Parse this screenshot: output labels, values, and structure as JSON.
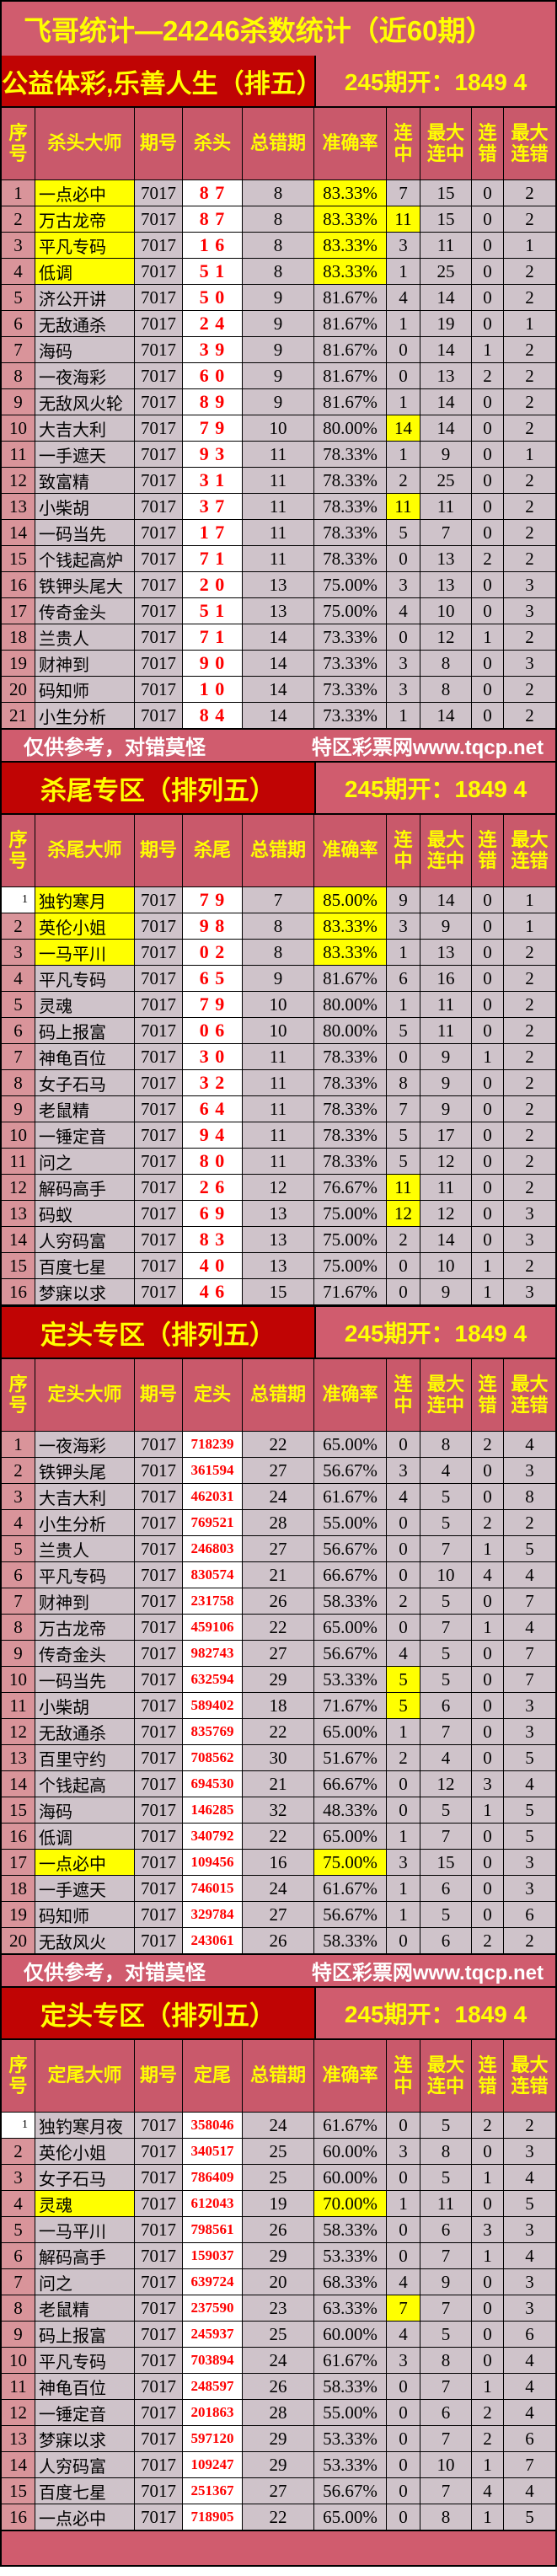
{
  "title": "飞哥统计—24246杀数统计（近60期）",
  "draw_text": "245期开：1849 4",
  "footer": {
    "left": "仅供参考，对错莫怪",
    "right": "特区彩票网www.tqcp.net"
  },
  "colors": {
    "pink": "#d05c6e",
    "dark_red": "#c00404",
    "header_rose": "#c9596b",
    "serial_salmon": "#d9949a",
    "cell_lavender": "#cfc3ca",
    "highlight_yellow": "#ffff00",
    "pick_red": "#fe0000",
    "title_yellow": "#ffff00"
  },
  "sections": [
    {
      "banner": "公益体彩,乐善人生（排五）",
      "pick_style": "pair",
      "footer_after": true,
      "columns": [
        "序号",
        "杀头大师",
        "期号",
        "杀头",
        "总错期",
        "准确率",
        "连中",
        "最大连中",
        "连错",
        "最大连错"
      ],
      "rows": [
        [
          "1",
          "一点必中",
          "7017",
          "8 7",
          "8",
          "83.33%",
          "7",
          "15",
          "0",
          "2",
          "nh ah"
        ],
        [
          "2",
          "万古龙帝",
          "7017",
          "8 7",
          "8",
          "83.33%",
          "11",
          "15",
          "0",
          "2",
          "nh ah sh"
        ],
        [
          "3",
          "平凡专码",
          "7017",
          "1 6",
          "8",
          "83.33%",
          "3",
          "11",
          "0",
          "1",
          "nh ah"
        ],
        [
          "4",
          "低调",
          "7017",
          "5 1",
          "8",
          "83.33%",
          "1",
          "25",
          "0",
          "2",
          "nh ah"
        ],
        [
          "5",
          "济公开讲",
          "7017",
          "5 0",
          "9",
          "81.67%",
          "4",
          "14",
          "0",
          "2",
          ""
        ],
        [
          "6",
          "无敌通杀",
          "7017",
          "2 4",
          "9",
          "81.67%",
          "1",
          "19",
          "0",
          "1",
          ""
        ],
        [
          "7",
          "海码",
          "7017",
          "3 9",
          "9",
          "81.67%",
          "0",
          "14",
          "1",
          "2",
          ""
        ],
        [
          "8",
          "一夜海彩",
          "7017",
          "6 0",
          "9",
          "81.67%",
          "0",
          "13",
          "2",
          "2",
          ""
        ],
        [
          "9",
          "无敌风火轮",
          "7017",
          "8 9",
          "9",
          "81.67%",
          "1",
          "14",
          "0",
          "2",
          ""
        ],
        [
          "10",
          "大吉大利",
          "7017",
          "7 9",
          "10",
          "80.00%",
          "14",
          "14",
          "0",
          "2",
          "sh"
        ],
        [
          "11",
          "一手遮天",
          "7017",
          "9 3",
          "11",
          "78.33%",
          "1",
          "9",
          "0",
          "1",
          ""
        ],
        [
          "12",
          "致富精",
          "7017",
          "3 1",
          "11",
          "78.33%",
          "2",
          "25",
          "0",
          "2",
          ""
        ],
        [
          "13",
          "小柴胡",
          "7017",
          "3 7",
          "11",
          "78.33%",
          "11",
          "11",
          "0",
          "2",
          "sh"
        ],
        [
          "14",
          "一码当先",
          "7017",
          "1 7",
          "11",
          "78.33%",
          "5",
          "7",
          "0",
          "2",
          ""
        ],
        [
          "15",
          "个钱起高炉",
          "7017",
          "7 1",
          "11",
          "78.33%",
          "0",
          "13",
          "2",
          "2",
          ""
        ],
        [
          "16",
          "铁钾头尾大",
          "7017",
          "2 0",
          "13",
          "75.00%",
          "3",
          "13",
          "0",
          "3",
          ""
        ],
        [
          "17",
          "传奇金头",
          "7017",
          "5 1",
          "13",
          "75.00%",
          "4",
          "10",
          "0",
          "3",
          ""
        ],
        [
          "18",
          "兰贵人",
          "7017",
          "7 1",
          "14",
          "73.33%",
          "0",
          "12",
          "1",
          "2",
          ""
        ],
        [
          "19",
          "财神到",
          "7017",
          "9 0",
          "14",
          "73.33%",
          "3",
          "8",
          "0",
          "3",
          ""
        ],
        [
          "20",
          "码知师",
          "7017",
          "1 0",
          "14",
          "73.33%",
          "3",
          "8",
          "0",
          "2",
          ""
        ],
        [
          "21",
          "小生分析",
          "7017",
          "8 4",
          "14",
          "73.33%",
          "1",
          "14",
          "0",
          "2",
          ""
        ]
      ]
    },
    {
      "banner": "杀尾专区（排列五）",
      "pick_style": "pair",
      "footer_after": false,
      "columns": [
        "序号",
        "杀尾大师",
        "期号",
        "杀尾",
        "总错期",
        "准确率",
        "连中",
        "最大连中",
        "连错",
        "最大连错"
      ],
      "rows": [
        [
          "1",
          "独钓寒月",
          "7017",
          "7 9",
          "7",
          "85.00%",
          "9",
          "14",
          "0",
          "1",
          "nh ah sw"
        ],
        [
          "2",
          "英伦小姐",
          "7017",
          "9 8",
          "8",
          "83.33%",
          "3",
          "9",
          "0",
          "1",
          "nh ah"
        ],
        [
          "3",
          "一马平川",
          "7017",
          "0 2",
          "8",
          "83.33%",
          "1",
          "13",
          "0",
          "2",
          "nh ah"
        ],
        [
          "4",
          "平凡专码",
          "7017",
          "6 5",
          "9",
          "81.67%",
          "6",
          "16",
          "0",
          "2",
          ""
        ],
        [
          "5",
          "灵魂",
          "7017",
          "7 9",
          "10",
          "80.00%",
          "1",
          "11",
          "0",
          "2",
          ""
        ],
        [
          "6",
          "码上报富",
          "7017",
          "0 6",
          "10",
          "80.00%",
          "5",
          "11",
          "0",
          "2",
          ""
        ],
        [
          "7",
          "神龟百位",
          "7017",
          "3 0",
          "11",
          "78.33%",
          "0",
          "9",
          "1",
          "2",
          ""
        ],
        [
          "8",
          "女子石马",
          "7017",
          "3 2",
          "11",
          "78.33%",
          "8",
          "9",
          "0",
          "2",
          ""
        ],
        [
          "9",
          "老鼠精",
          "7017",
          "6 4",
          "11",
          "78.33%",
          "7",
          "9",
          "0",
          "2",
          ""
        ],
        [
          "10",
          "一锤定音",
          "7017",
          "9 4",
          "11",
          "78.33%",
          "5",
          "17",
          "0",
          "2",
          ""
        ],
        [
          "11",
          "问之",
          "7017",
          "8 0",
          "11",
          "78.33%",
          "5",
          "12",
          "0",
          "2",
          ""
        ],
        [
          "12",
          "解码高手",
          "7017",
          "2 6",
          "12",
          "76.67%",
          "11",
          "11",
          "0",
          "2",
          "sh"
        ],
        [
          "13",
          "码蚁",
          "7017",
          "6 9",
          "13",
          "75.00%",
          "12",
          "12",
          "0",
          "3",
          "sh"
        ],
        [
          "14",
          "人穷码富",
          "7017",
          "8 3",
          "13",
          "75.00%",
          "2",
          "14",
          "0",
          "3",
          ""
        ],
        [
          "15",
          "百度七星",
          "7017",
          "4 0",
          "13",
          "75.00%",
          "0",
          "10",
          "1",
          "2",
          ""
        ],
        [
          "16",
          "梦寐以求",
          "7017",
          "4 6",
          "15",
          "71.67%",
          "0",
          "9",
          "1",
          "3",
          ""
        ]
      ]
    },
    {
      "banner": "定头专区（排列五）",
      "pick_style": "digits",
      "footer_after": true,
      "columns": [
        "序号",
        "定头大师",
        "期号",
        "定头",
        "总错期",
        "准确率",
        "连中",
        "最大连中",
        "连错",
        "最大连错"
      ],
      "rows": [
        [
          "1",
          "一夜海彩",
          "7017",
          "718239",
          "22",
          "65.00%",
          "0",
          "8",
          "2",
          "4",
          ""
        ],
        [
          "2",
          "铁钾头尾",
          "7017",
          "361594",
          "27",
          "56.67%",
          "3",
          "4",
          "0",
          "3",
          ""
        ],
        [
          "3",
          "大吉大利",
          "7017",
          "462031",
          "24",
          "61.67%",
          "4",
          "5",
          "0",
          "8",
          ""
        ],
        [
          "4",
          "小生分析",
          "7017",
          "769521",
          "28",
          "55.00%",
          "0",
          "5",
          "2",
          "2",
          ""
        ],
        [
          "5",
          "兰贵人",
          "7017",
          "246803",
          "27",
          "56.67%",
          "0",
          "7",
          "1",
          "5",
          ""
        ],
        [
          "6",
          "平凡专码",
          "7017",
          "830574",
          "21",
          "66.67%",
          "0",
          "10",
          "4",
          "4",
          ""
        ],
        [
          "7",
          "财神到",
          "7017",
          "231758",
          "26",
          "58.33%",
          "2",
          "5",
          "0",
          "7",
          ""
        ],
        [
          "8",
          "万古龙帝",
          "7017",
          "459106",
          "22",
          "65.00%",
          "0",
          "7",
          "1",
          "4",
          ""
        ],
        [
          "9",
          "传奇金头",
          "7017",
          "982743",
          "27",
          "56.67%",
          "4",
          "5",
          "0",
          "7",
          ""
        ],
        [
          "10",
          "一码当先",
          "7017",
          "632594",
          "29",
          "53.33%",
          "5",
          "5",
          "0",
          "7",
          "sh"
        ],
        [
          "11",
          "小柴胡",
          "7017",
          "589402",
          "18",
          "71.67%",
          "5",
          "6",
          "0",
          "3",
          "sh"
        ],
        [
          "12",
          "无敌通杀",
          "7017",
          "835769",
          "22",
          "65.00%",
          "1",
          "7",
          "0",
          "3",
          ""
        ],
        [
          "13",
          "百里守约",
          "7017",
          "708562",
          "30",
          "51.67%",
          "2",
          "4",
          "0",
          "5",
          ""
        ],
        [
          "14",
          "个钱起高",
          "7017",
          "694530",
          "21",
          "66.67%",
          "0",
          "12",
          "3",
          "4",
          ""
        ],
        [
          "15",
          "海码",
          "7017",
          "146285",
          "32",
          "48.33%",
          "0",
          "5",
          "1",
          "5",
          ""
        ],
        [
          "16",
          "低调",
          "7017",
          "340792",
          "22",
          "65.00%",
          "1",
          "7",
          "0",
          "5",
          ""
        ],
        [
          "17",
          "一点必中",
          "7017",
          "109456",
          "16",
          "75.00%",
          "3",
          "15",
          "0",
          "3",
          "nh ah"
        ],
        [
          "18",
          "一手遮天",
          "7017",
          "746015",
          "24",
          "61.67%",
          "1",
          "6",
          "0",
          "3",
          ""
        ],
        [
          "19",
          "码知师",
          "7017",
          "329784",
          "27",
          "56.67%",
          "1",
          "5",
          "0",
          "6",
          ""
        ],
        [
          "20",
          "无敌风火",
          "7017",
          "243061",
          "26",
          "58.33%",
          "0",
          "6",
          "2",
          "2",
          ""
        ]
      ]
    },
    {
      "banner": "定头专区（排列五）",
      "pick_style": "digits",
      "footer_after": false,
      "columns": [
        "序号",
        "定尾大师",
        "期号",
        "定尾",
        "总错期",
        "准确率",
        "连中",
        "最大连中",
        "连错",
        "最大连错"
      ],
      "rows": [
        [
          "1",
          "独钓寒月夜",
          "7017",
          "358046",
          "24",
          "61.67%",
          "0",
          "5",
          "2",
          "2",
          "sw"
        ],
        [
          "2",
          "英伦小姐",
          "7017",
          "340517",
          "25",
          "60.00%",
          "3",
          "8",
          "0",
          "3",
          ""
        ],
        [
          "3",
          "女子石马",
          "7017",
          "786409",
          "25",
          "60.00%",
          "0",
          "5",
          "1",
          "4",
          ""
        ],
        [
          "4",
          "灵魂",
          "7017",
          "612043",
          "19",
          "70.00%",
          "1",
          "11",
          "0",
          "5",
          "nh ah"
        ],
        [
          "5",
          "一马平川",
          "7017",
          "798561",
          "26",
          "58.33%",
          "0",
          "6",
          "3",
          "3",
          ""
        ],
        [
          "6",
          "解码高手",
          "7017",
          "159037",
          "29",
          "53.33%",
          "0",
          "7",
          "1",
          "4",
          ""
        ],
        [
          "7",
          "问之",
          "7017",
          "639724",
          "20",
          "68.33%",
          "4",
          "9",
          "0",
          "3",
          ""
        ],
        [
          "8",
          "老鼠精",
          "7017",
          "237590",
          "23",
          "63.33%",
          "7",
          "7",
          "0",
          "3",
          "sh"
        ],
        [
          "9",
          "码上报富",
          "7017",
          "245937",
          "25",
          "60.00%",
          "4",
          "5",
          "0",
          "6",
          ""
        ],
        [
          "10",
          "平凡专码",
          "7017",
          "703894",
          "24",
          "61.67%",
          "3",
          "8",
          "0",
          "4",
          ""
        ],
        [
          "11",
          "神龟百位",
          "7017",
          "248597",
          "26",
          "58.33%",
          "0",
          "7",
          "1",
          "4",
          ""
        ],
        [
          "12",
          "一锤定音",
          "7017",
          "201863",
          "28",
          "55.00%",
          "0",
          "6",
          "2",
          "4",
          ""
        ],
        [
          "13",
          "梦寐以求",
          "7017",
          "597120",
          "29",
          "53.33%",
          "0",
          "7",
          "2",
          "6",
          ""
        ],
        [
          "14",
          "人穷码富",
          "7017",
          "109247",
          "29",
          "53.33%",
          "0",
          "10",
          "1",
          "7",
          ""
        ],
        [
          "15",
          "百度七星",
          "7017",
          "251367",
          "27",
          "56.67%",
          "0",
          "7",
          "4",
          "4",
          ""
        ],
        [
          "16",
          "一点必中",
          "7017",
          "718905",
          "22",
          "65.00%",
          "0",
          "8",
          "1",
          "5",
          ""
        ]
      ]
    }
  ]
}
